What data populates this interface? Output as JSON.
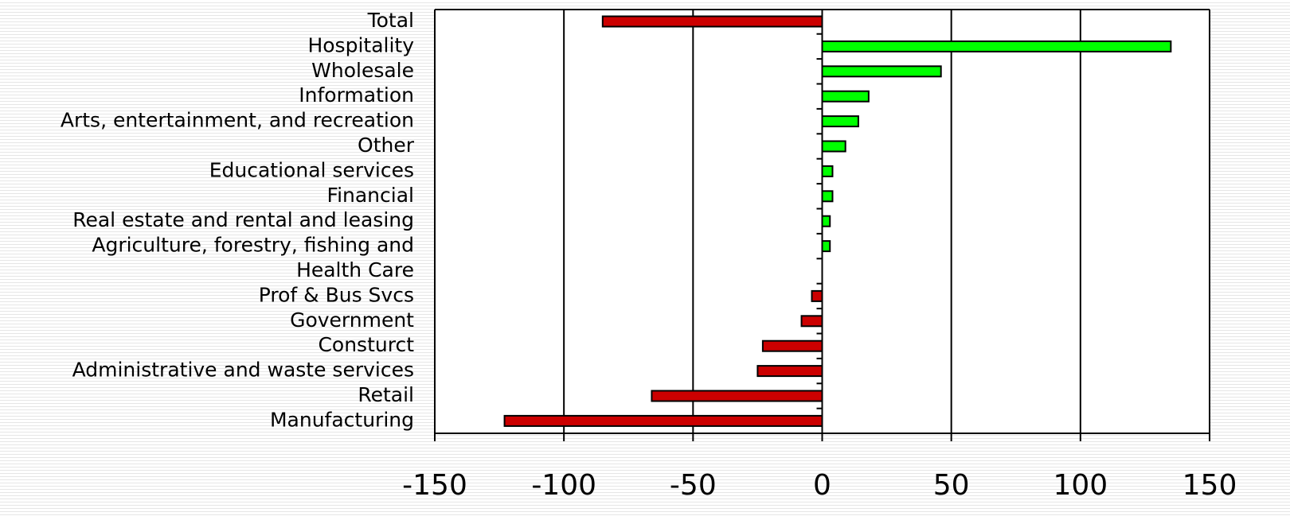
{
  "chart_data": {
    "type": "bar",
    "orientation": "horizontal",
    "title": "",
    "xlabel": "",
    "ylabel": "",
    "xlim": [
      -150,
      150
    ],
    "x_ticks": [
      -150,
      -100,
      -50,
      0,
      50,
      100,
      150
    ],
    "x_tick_labels": [
      "-150",
      "-100",
      "-50",
      "0",
      "50",
      "100",
      "150"
    ],
    "grid": "vertical",
    "legend": "none",
    "positive_color": "#00ff00",
    "negative_color": "#cc0000",
    "categories": [
      "Total",
      "Hospitality",
      "Wholesale",
      "Information",
      "Arts, entertainment, and recreation",
      "Other",
      "Educational services",
      "Financial",
      "Real estate and rental and leasing",
      "Agriculture, forestry, fishing and",
      "Health Care",
      "Prof & Bus Svcs",
      "Government",
      "Consturct",
      "Administrative and waste services",
      "Retail",
      "Manufacturing"
    ],
    "values": [
      -85,
      135,
      46,
      18,
      14,
      9,
      4,
      4,
      3,
      3,
      0,
      -4,
      -8,
      -23,
      -25,
      -66,
      -123
    ]
  }
}
